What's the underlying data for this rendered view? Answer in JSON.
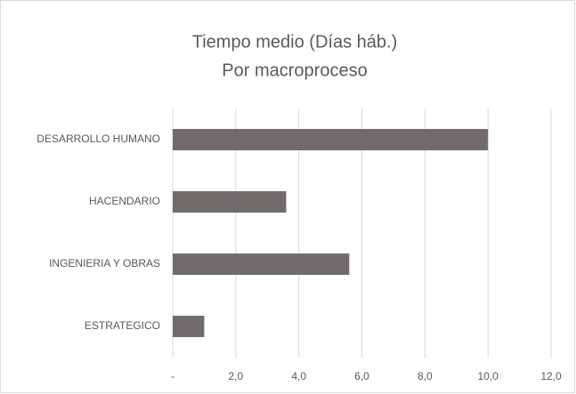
{
  "chart_data": {
    "type": "barh",
    "title": "Tiempo medio (Días háb.)",
    "subtitle": "Por macroproceso",
    "categories": [
      "DESARROLLO HUMANO",
      "HACENDARIO",
      "INGENIERIA Y OBRAS",
      "ESTRATEGICO"
    ],
    "values": [
      10.0,
      3.6,
      5.6,
      1.0
    ],
    "color": "#716c6b",
    "xlim": [
      0,
      12
    ],
    "xticks": [
      {
        "value": 0,
        "label": "-"
      },
      {
        "value": 2,
        "label": "2,0"
      },
      {
        "value": 4,
        "label": "4,0"
      },
      {
        "value": 6,
        "label": "6,0"
      },
      {
        "value": 8,
        "label": "8,0"
      },
      {
        "value": 10,
        "label": "10,0"
      },
      {
        "value": 12,
        "label": "12,0"
      }
    ],
    "grid": true
  }
}
